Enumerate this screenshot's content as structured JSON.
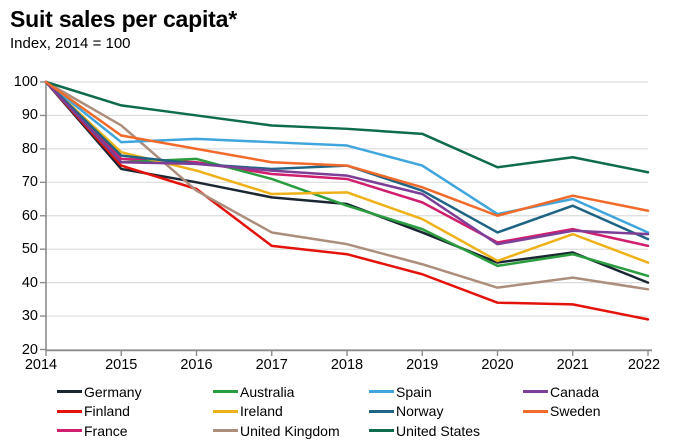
{
  "header": {
    "title": "Suit sales per capita*",
    "subtitle": "Index, 2014 = 100"
  },
  "chart_data": {
    "type": "line",
    "title": "Suit sales per capita*",
    "subtitle": "Index, 2014 = 100",
    "x": [
      2014,
      2015,
      2016,
      2017,
      2018,
      2019,
      2020,
      2021,
      2022
    ],
    "x_tick_labels": [
      "2014",
      "2015",
      "2016",
      "2017",
      "2018",
      "2019",
      "2020",
      "2021",
      "2022"
    ],
    "ylim": [
      20,
      100
    ],
    "yticks": [
      20,
      30,
      40,
      50,
      60,
      70,
      80,
      90,
      100
    ],
    "grid": "horizontal",
    "legend_position": "bottom",
    "legend_columns": 4,
    "series": [
      {
        "name": "Germany",
        "color": "#1a2733",
        "values": [
          100,
          74,
          70,
          65.5,
          63.5,
          55,
          46,
          49,
          40
        ]
      },
      {
        "name": "Finland",
        "color": "#e3120b",
        "values": [
          100,
          75,
          68,
          51,
          48.5,
          42.5,
          34,
          33.5,
          29
        ]
      },
      {
        "name": "France",
        "color": "#d11f70",
        "values": [
          100,
          77,
          76,
          72.5,
          71,
          64,
          52,
          56,
          51
        ]
      },
      {
        "name": "Australia",
        "color": "#2a9d3f",
        "values": [
          100,
          76,
          77,
          71,
          63,
          56,
          45,
          48.5,
          42
        ]
      },
      {
        "name": "Ireland",
        "color": "#efb118",
        "values": [
          100,
          79,
          73.5,
          66.5,
          67,
          59,
          46.5,
          54.5,
          46
        ]
      },
      {
        "name": "United Kingdom",
        "color": "#ad8e7d",
        "values": [
          100,
          87,
          67.5,
          55,
          51.5,
          45.5,
          38.5,
          41.5,
          38
        ]
      },
      {
        "name": "Spain",
        "color": "#3fa5dc",
        "values": [
          100,
          82,
          83,
          82,
          81,
          75,
          60.5,
          65,
          55
        ]
      },
      {
        "name": "Norway",
        "color": "#1f6484",
        "values": [
          100,
          78,
          75.5,
          74,
          75,
          67.5,
          55,
          63,
          53
        ]
      },
      {
        "name": "United States",
        "color": "#0f6b4e",
        "values": [
          100,
          93,
          90,
          87,
          86,
          84.5,
          74.5,
          77.5,
          73
        ]
      },
      {
        "name": "Canada",
        "color": "#7d3e98",
        "values": [
          100,
          76,
          75.5,
          73.5,
          72,
          66.5,
          51.5,
          55.5,
          54.5
        ]
      },
      {
        "name": "Sweden",
        "color": "#f26a2a",
        "values": [
          100,
          84,
          80,
          76,
          75,
          68.5,
          60,
          66,
          61.5
        ]
      }
    ]
  },
  "axis_style": {
    "axis_color": "#8c8c8c",
    "grid_color": "#dcdcdc",
    "tick_color": "#8c8c8c",
    "label_color": "#000000"
  }
}
